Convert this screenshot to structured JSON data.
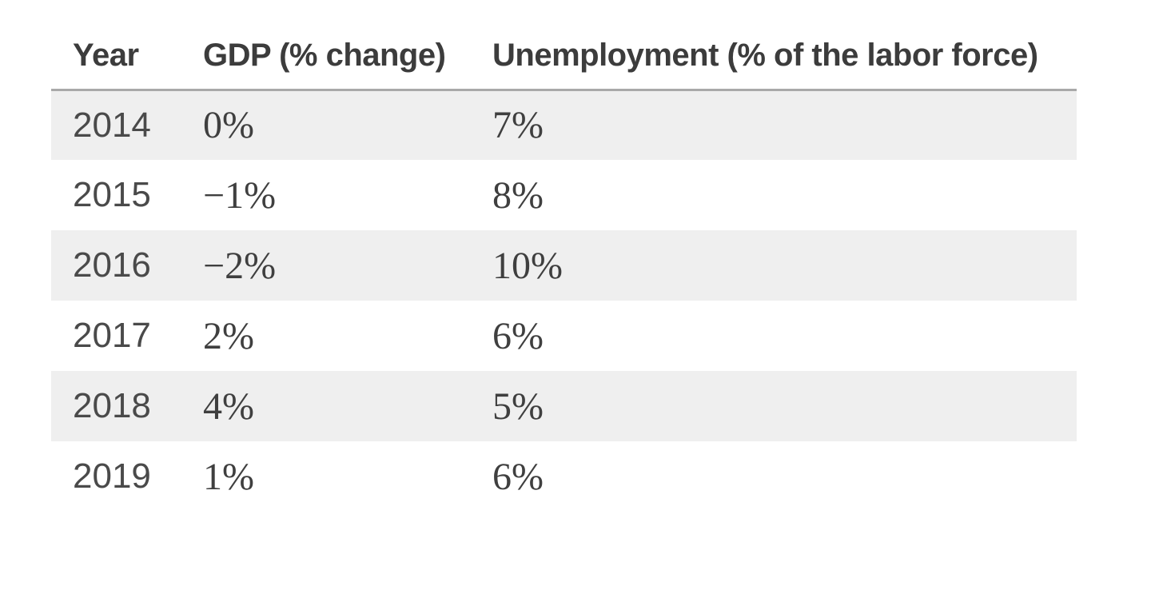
{
  "chart_data": {
    "type": "table",
    "columns": [
      "Year",
      "GDP (% change)",
      "Unemployment (% of the labor force)"
    ],
    "rows": [
      [
        "2014",
        "0%",
        "7%"
      ],
      [
        "2015",
        "−1%",
        "8%"
      ],
      [
        "2016",
        "−2%",
        "10%"
      ],
      [
        "2017",
        "2%",
        "6%"
      ],
      [
        "2018",
        "4%",
        "5%"
      ],
      [
        "2019",
        "1%",
        "6%"
      ]
    ],
    "series": [
      {
        "name": "GDP (% change)",
        "values": [
          0,
          -1,
          -2,
          2,
          4,
          1
        ]
      },
      {
        "name": "Unemployment (% of the labor force)",
        "values": [
          7,
          8,
          10,
          6,
          5,
          6
        ]
      }
    ],
    "categories": [
      "2014",
      "2015",
      "2016",
      "2017",
      "2018",
      "2019"
    ],
    "title": "",
    "legend_position": "none",
    "layout_hints": "zebra striping on 2014, 2016 and 2018 rows; horizontal rule below header only"
  },
  "colors": {
    "stripe": "#efefef",
    "header_border": "#a9a9a9",
    "header_text": "#3c3c3c",
    "body_text": "#4a4a4a",
    "value_text": "#3f3f3f"
  }
}
